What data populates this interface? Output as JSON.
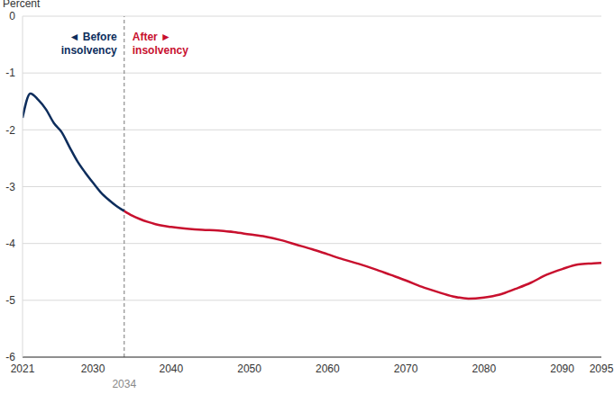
{
  "chart_data": {
    "type": "line",
    "y_label": "Percent",
    "x": [
      2021,
      2022,
      2023,
      2024,
      2025,
      2026,
      2027,
      2028,
      2029,
      2030,
      2031,
      2032,
      2033,
      2034,
      2035,
      2036,
      2037,
      2038,
      2039,
      2040,
      2042,
      2044,
      2046,
      2048,
      2050,
      2052,
      2054,
      2056,
      2058,
      2060,
      2062,
      2064,
      2066,
      2068,
      2070,
      2072,
      2074,
      2076,
      2078,
      2080,
      2082,
      2084,
      2086,
      2088,
      2090,
      2092,
      2094,
      2095
    ],
    "series": [
      {
        "color": "#0d2d5c",
        "values": [
          -1.79,
          -1.36,
          -1.47,
          -1.64,
          -1.88,
          -2.04,
          -2.3,
          -2.55,
          -2.75,
          -2.93,
          -3.1,
          -3.23,
          -3.34,
          -3.43,
          null,
          null,
          null,
          null,
          null,
          null,
          null,
          null,
          null,
          null,
          null,
          null,
          null,
          null,
          null,
          null,
          null,
          null,
          null,
          null,
          null,
          null,
          null,
          null,
          null,
          null,
          null,
          null,
          null,
          null,
          null,
          null,
          null,
          null
        ]
      },
      {
        "color": "#c8102e",
        "values": [
          null,
          null,
          null,
          null,
          null,
          null,
          null,
          null,
          null,
          null,
          null,
          null,
          null,
          -3.43,
          -3.51,
          -3.57,
          -3.62,
          -3.66,
          -3.69,
          -3.71,
          -3.74,
          -3.76,
          -3.77,
          -3.8,
          -3.84,
          -3.88,
          -3.94,
          -4.02,
          -4.1,
          -4.19,
          -4.28,
          -4.36,
          -4.45,
          -4.55,
          -4.65,
          -4.76,
          -4.85,
          -4.93,
          -4.97,
          -4.95,
          -4.9,
          -4.8,
          -4.69,
          -4.55,
          -4.45,
          -4.37,
          -4.35,
          -4.34
        ]
      }
    ],
    "xlim": [
      2021,
      2095
    ],
    "xticks": [
      2021,
      2030,
      2040,
      2050,
      2060,
      2070,
      2080,
      2090,
      2095
    ],
    "ylim": [
      -6,
      0
    ],
    "yticks": [
      -6,
      -5,
      -4,
      -3,
      -2,
      -1,
      0
    ],
    "grid": true,
    "reference_line": {
      "x": 2034,
      "label": "2034",
      "line_style": "dashed"
    },
    "annotations": [
      {
        "text": "◄ Before\ninsolvency",
        "color": "#0d2d5c"
      },
      {
        "text": "After ►\ninsolvency",
        "color": "#c8102e"
      }
    ]
  }
}
